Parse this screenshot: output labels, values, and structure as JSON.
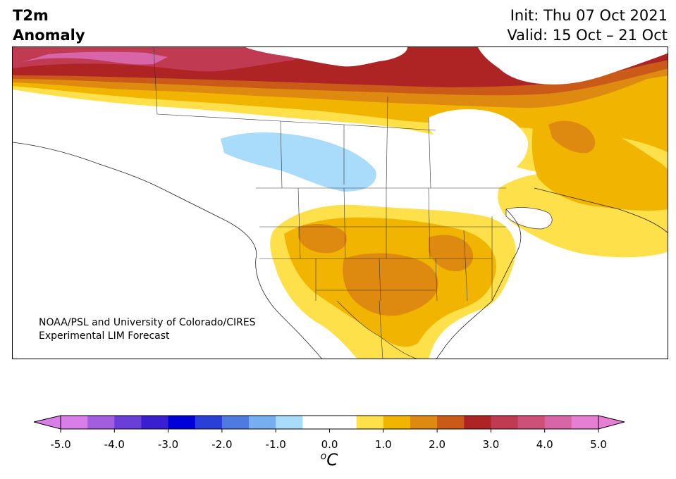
{
  "title": {
    "variable": "T2m",
    "type": "Anomaly",
    "init": "Init: Thu 07 Oct 2021",
    "valid": "Valid: 15 Oct – 21 Oct"
  },
  "credit": {
    "line1": "NOAA/PSL and University of Colorado/CIRES",
    "line2": "Experimental LIM Forecast"
  },
  "colorbar": {
    "unit_symbol": "o",
    "unit_letter": "C",
    "tick_labels": [
      "-5.0",
      "-4.0",
      "-3.0",
      "-2.0",
      "-1.0",
      "0.0",
      "1.0",
      "2.0",
      "3.0",
      "4.0",
      "5.0"
    ],
    "colors": [
      "#d97ee8",
      "#a35ee0",
      "#6a3fd8",
      "#3a1fd0",
      "#0000d8",
      "#2a3fd8",
      "#4f7ae0",
      "#76aef0",
      "#a9dcfa",
      "#ffffff",
      "#ffffff",
      "#fde04a",
      "#f1b400",
      "#de8a10",
      "#c95a18",
      "#ae2424",
      "#c03a52",
      "#cc5078",
      "#d865a8",
      "#e67ed4"
    ],
    "under_color": "#d97ee8",
    "over_color": "#e67ed4"
  },
  "map": {
    "region": "North America",
    "field_colors": {
      "land": "#ffffff",
      "border": "#333333",
      "cold_anomaly": "#a9dcfa",
      "warm_1": "#fde04a",
      "warm_2": "#f1b400",
      "warm_3": "#de8a10",
      "warm_4": "#c95a18",
      "warm_5": "#ae2424",
      "warm_6": "#c03a52",
      "warm_7": "#d865a8"
    }
  }
}
